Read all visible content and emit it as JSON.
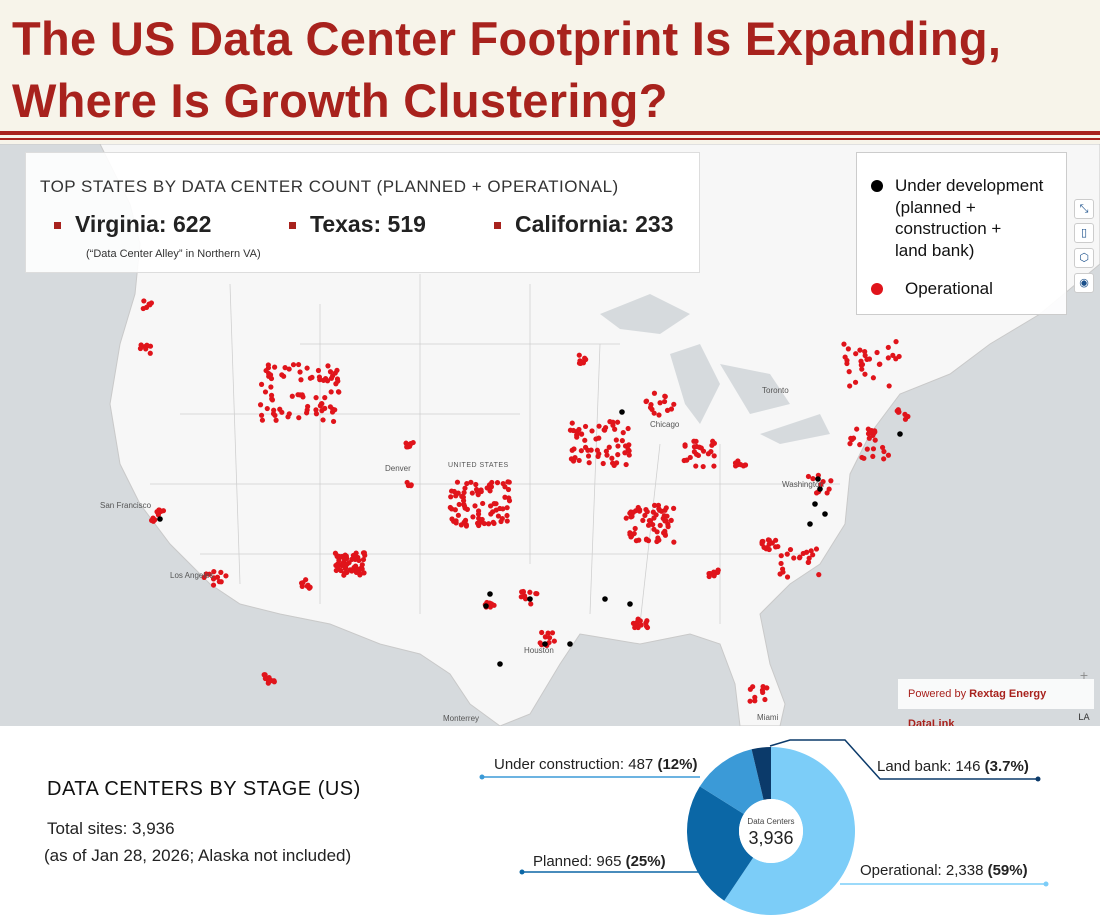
{
  "title_line1": "The US Data Center Footprint Is Expanding,",
  "title_line2": "Where Is Growth Clustering?",
  "top_states": {
    "title": "TOP STATES BY DATA CENTER COUNT (PLANNED + OPERATIONAL)",
    "items": [
      {
        "label": "Virginia: 622"
      },
      {
        "label": "Texas: 519"
      },
      {
        "label": "California: 233"
      }
    ],
    "note": "(“Data Center Alley” in Northern VA)"
  },
  "legend": {
    "development": "Under development (planned + construction + land bank)",
    "development_lines": [
      "Under development",
      "(planned +",
      "construction +",
      "land bank)"
    ],
    "operational": "Operational",
    "development_color": "#000000",
    "operational_color": "#e0141b"
  },
  "map_labels": {
    "san_francisco": "San Francisco",
    "los_angeles": "Los Angeles",
    "denver": "Denver",
    "united_states": "UNITED STATES",
    "chicago": "Chicago",
    "toronto": "Toronto",
    "washington": "Washington",
    "houston": "Houston",
    "monterrey": "Monterrey",
    "miami": "Miami"
  },
  "map_controls": [
    "collapse-icon",
    "map-icon",
    "layers-icon",
    "locate-icon",
    "zoom-in-icon",
    "north-icon"
  ],
  "powered_by": {
    "prefix": "Powered by ",
    "brand": "Rextag Energy DataLink"
  },
  "stage": {
    "title": "DATA CENTERS BY STAGE (US)",
    "total": "Total sites: 3,936",
    "note": "(as of Jan 28, 2026; Alaska not included)"
  },
  "chart_data": {
    "type": "pie",
    "center_label": "Data Centers",
    "center_value": "3,936",
    "slices": [
      {
        "name": "Operational",
        "value": 2338,
        "percent": "59%",
        "color": "#7ccdf8",
        "text": "Operational: 2,338"
      },
      {
        "name": "Planned",
        "value": 965,
        "percent": "25%",
        "color": "#0b67a6",
        "text": "Planned: 965"
      },
      {
        "name": "Under construction",
        "value": 487,
        "percent": "12%",
        "color": "#3b9ad7",
        "text": "Under construction: 487"
      },
      {
        "name": "Land bank",
        "value": 146,
        "percent": "3.7%",
        "color": "#0b3a6a",
        "text": "Land bank: 146"
      }
    ]
  }
}
